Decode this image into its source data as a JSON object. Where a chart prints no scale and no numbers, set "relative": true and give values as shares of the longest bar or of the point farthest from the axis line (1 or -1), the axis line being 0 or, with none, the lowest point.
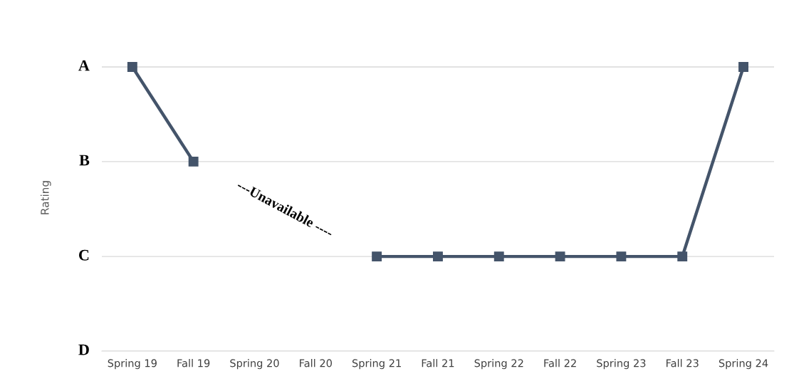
{
  "chart_data": {
    "type": "line",
    "relative": true,
    "categories": [
      "Spring 19",
      "Fall 19",
      "Spring 20",
      "Fall 20",
      "Spring 21",
      "Fall 21",
      "Spring 22",
      "Fall 22",
      "Spring 23",
      "Fall 23",
      "Spring 24"
    ],
    "series": [
      {
        "color": "#44546a",
        "values": [
          1,
          0.667,
          null,
          null,
          0.333,
          0.333,
          0.333,
          0.333,
          0.333,
          0.333,
          1
        ]
      }
    ],
    "ylabel": "Rating",
    "ref_lines": [
      {
        "axis": "y",
        "value": 1,
        "label": "A",
        "color": "#d9d9d9"
      },
      {
        "axis": "y",
        "value": 0.667,
        "label": "B",
        "color": "#d9d9d9"
      },
      {
        "axis": "y",
        "value": 0.333,
        "label": "C",
        "color": "#d9d9d9"
      },
      {
        "axis": "y",
        "value": 0,
        "label": "D",
        "color": "#d9d9d9"
      }
    ],
    "annotations": [
      "---Unavailable ----"
    ],
    "marker": "square",
    "line_style": "solid"
  }
}
